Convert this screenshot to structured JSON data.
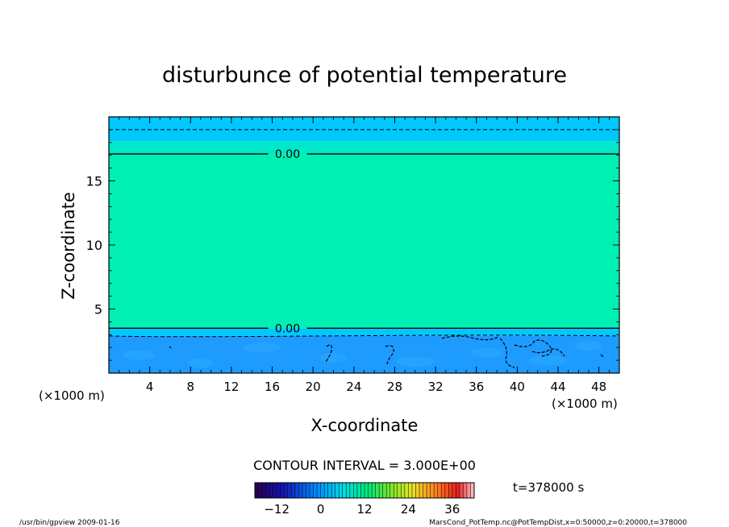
{
  "chart_data": {
    "type": "heatmap",
    "title": "disturbunce of potential temperature",
    "xlabel": "X-coordinate",
    "ylabel": "Z-coordinate",
    "x_unit_left": "(×1000 m)",
    "x_unit_right": "(×1000 m)",
    "xlim": [
      0,
      50
    ],
    "ylim": [
      0,
      20
    ],
    "xticks": [
      4,
      8,
      12,
      16,
      20,
      24,
      28,
      32,
      36,
      40,
      44,
      48
    ],
    "yticks": [
      5,
      10,
      15
    ],
    "contour_labels": [
      {
        "text": "0.00",
        "x": 17.5,
        "z": 17.1
      },
      {
        "text": "0.00",
        "x": 17.5,
        "z": 3.5
      }
    ],
    "contour_interval_text": "CONTOUR INTERVAL = 3.000E+00",
    "time_text": "t=378000 s",
    "colorbar": {
      "ticks": [
        -12,
        0,
        12,
        24,
        36
      ],
      "range": [
        -18,
        42
      ]
    },
    "field_bands": [
      {
        "z0": 0,
        "z1": 2.9,
        "color": "#1e9bff"
      },
      {
        "z0": 2.9,
        "z1": 3.5,
        "color": "#00c8ff"
      },
      {
        "z0": 3.5,
        "z1": 17.1,
        "color": "#00f0b4"
      },
      {
        "z0": 17.1,
        "z1": 18.1,
        "color": "#00e8c8"
      },
      {
        "z0": 18.1,
        "z1": 20,
        "color": "#00c8ff"
      }
    ]
  },
  "footer": {
    "left": "/usr/bin/gpview 2009-01-16",
    "right": "MarsCond_PotTemp.nc@PotTempDist,x=0:50000,z=0:20000,t=378000"
  }
}
